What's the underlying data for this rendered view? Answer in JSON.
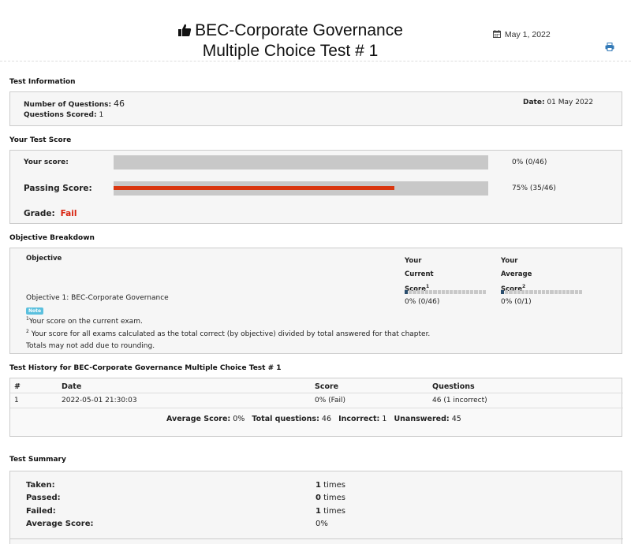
{
  "header": {
    "title_line1": "BEC-Corporate Governance",
    "title_line2": "Multiple Choice Test # 1",
    "date": "May 1, 2022",
    "icons": {
      "title": "thumbs-up-icon",
      "date": "calendar-icon",
      "print": "print-icon"
    },
    "accent_color": "#337ab7"
  },
  "test_info": {
    "section_title": "Test Information",
    "num_questions_label": "Number of Questions:",
    "num_questions_value": "46",
    "questions_scored_label": "Questions Scored:",
    "questions_scored_value": "1",
    "date_label": "Date:",
    "date_value": "01 May 2022"
  },
  "test_score": {
    "section_title": "Your Test Score",
    "your_score_label": "Your score:",
    "your_score_fraction": 0,
    "your_score_text": "0% (0/46)",
    "passing_label": "Passing Score:",
    "passing_fraction": 0.75,
    "passing_text": "75% (35/46)",
    "passing_color": "#d9360f",
    "grade_label": "Grade:",
    "grade_value": "Fail",
    "grade_color": "#d9230f"
  },
  "objective": {
    "section_title": "Objective Breakdown",
    "col_objective": "Objective",
    "col_current_1": "Your",
    "col_current_2": "Current",
    "col_current_3": "Score",
    "col_current_sup": "1",
    "col_average_1": "Your",
    "col_average_2": "Average",
    "col_average_3": "Score",
    "col_average_sup": "2",
    "row_name": "Objective 1: BEC-Corporate Governance",
    "current_fraction": 0.05,
    "current_text": "0% (0/46)",
    "average_fraction": 0.05,
    "average_text": "0% (0/1)",
    "note_badge": "Note",
    "note1_sup": "1",
    "note1": "Your score on the current exam.",
    "note2_sup": "2",
    "note2": " Your score for all exams calculated as the total correct (by objective) divided by total answered for that chapter.",
    "note3": "Totals may not add due to rounding."
  },
  "history": {
    "section_title": "Test History for BEC-Corporate Governance Multiple Choice Test # 1",
    "headers": [
      "#",
      "Date",
      "Score",
      "Questions"
    ],
    "rows": [
      [
        "1",
        "2022-05-01 21:30:03",
        "0% (Fail)",
        "46 (1 incorrect)"
      ]
    ],
    "avg_label": "Average Score:",
    "avg_value": "0%",
    "total_label": "Total questions:",
    "total_value": "46",
    "incorrect_label": "Incorrect:",
    "incorrect_value": "1",
    "unanswered_label": "Unanswered:",
    "unanswered_value": "45"
  },
  "summary": {
    "section_title": "Test Summary",
    "taken_label": "Taken:",
    "taken_value": "1",
    "passed_label": "Passed:",
    "passed_value": "0",
    "failed_label": "Failed:",
    "failed_value": "1",
    "average_label": "Average Score:",
    "average_value": "0%",
    "times": "times"
  }
}
